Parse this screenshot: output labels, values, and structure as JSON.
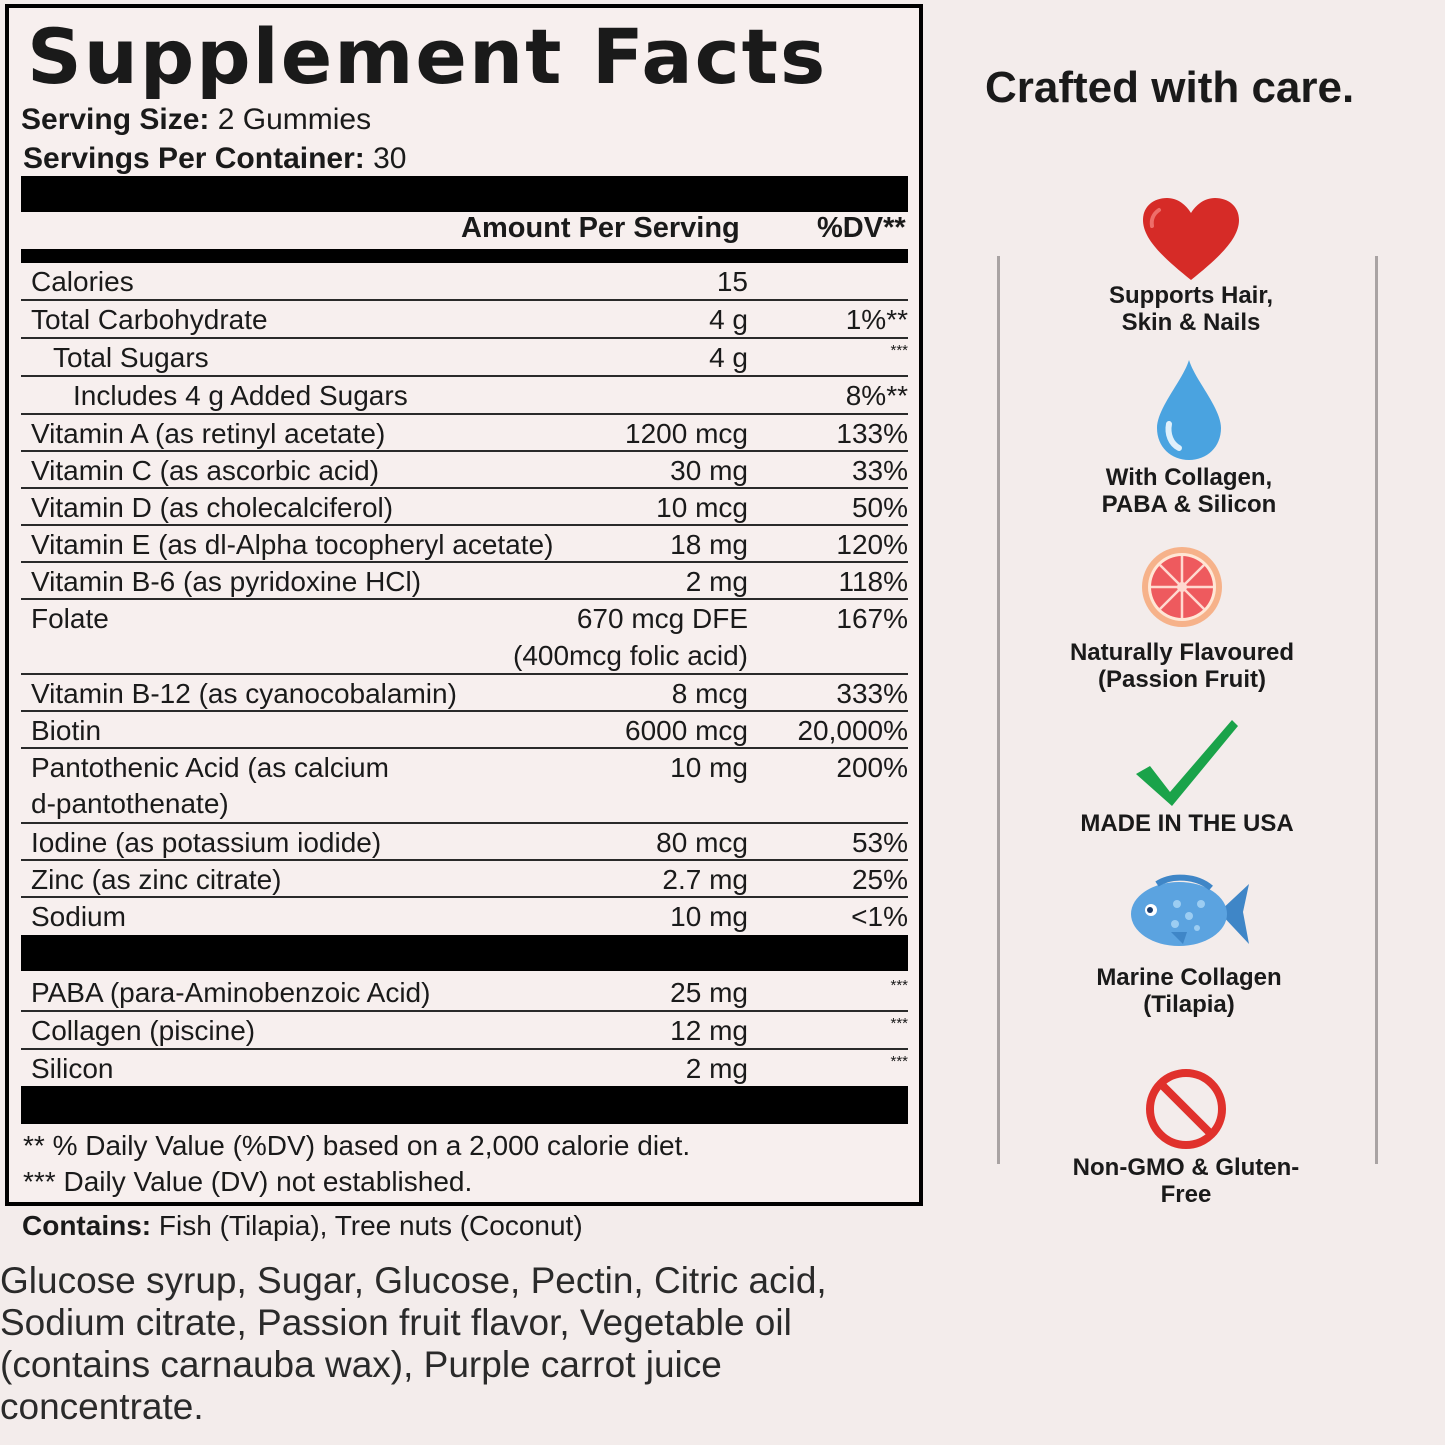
{
  "facts": {
    "title": "Supplement Facts",
    "serving_size_label": "Serving Size:",
    "serving_size_value": "2 Gummies",
    "servings_label": "Servings Per Container:",
    "servings_value": "30",
    "header_amount": "Amount Per Serving",
    "header_dv": "%DV**",
    "rows": [
      {
        "name": "Calories",
        "amount": "15",
        "dv": ""
      },
      {
        "name": "Total Carbohydrate",
        "amount": "4 g",
        "dv": "1%**"
      },
      {
        "name": "Total Sugars",
        "amount": "4 g",
        "dv": "***"
      },
      {
        "name": "Includes 4 g Added Sugars",
        "amount": "",
        "dv": "8%**"
      },
      {
        "name": "Vitamin A (as retinyl acetate)",
        "amount": "1200 mcg",
        "dv": "133%"
      },
      {
        "name": "Vitamin C (as ascorbic acid)",
        "amount": "30 mg",
        "dv": "33%"
      },
      {
        "name": "Vitamin D (as cholecalciferol)",
        "amount": "10 mcg",
        "dv": "50%"
      },
      {
        "name": "Vitamin E (as dl-Alpha tocopheryl acetate)",
        "amount": "18 mg",
        "dv": "120%"
      },
      {
        "name": "Vitamin B-6 (as pyridoxine HCl)",
        "amount": "2 mg",
        "dv": "118%"
      },
      {
        "name": "Folate",
        "amount": "670 mcg DFE",
        "amount2": "(400mcg folic acid)",
        "dv": "167%"
      },
      {
        "name": "Vitamin B-12 (as cyanocobalamin)",
        "amount": "8 mcg",
        "dv": "333%"
      },
      {
        "name": "Biotin",
        "amount": "6000 mcg",
        "dv": "20,000%"
      },
      {
        "name": "Pantothenic Acid (as calcium",
        "name2": "d-pantothenate)",
        "amount": "10 mg",
        "dv": "200%"
      },
      {
        "name": "Iodine (as potassium iodide)",
        "amount": "80 mcg",
        "dv": "53%"
      },
      {
        "name": "Zinc (as zinc citrate)",
        "amount": "2.7 mg",
        "dv": "25%"
      },
      {
        "name": "Sodium",
        "amount": "10 mg",
        "dv": "<1%"
      }
    ],
    "other_rows": [
      {
        "name": "PABA (para-Aminobenzoic Acid)",
        "amount": "25 mg",
        "dv": "***"
      },
      {
        "name": "Collagen (piscine)",
        "amount": "12 mg",
        "dv": "***"
      },
      {
        "name": "Silicon",
        "amount": "2 mg",
        "dv": "***"
      }
    ],
    "footnote1": "** % Daily Value (%DV) based on a 2,000 calorie diet.",
    "footnote2": "*** Daily Value (DV) not established."
  },
  "contains_label": "Contains:",
  "contains_value": "Fish (Tilapia), Tree nuts (Coconut)",
  "ingredients": "Glucose syrup, Sugar, Glucose, Pectin, Citric acid, Sodium citrate, Passion fruit flavor, Vegetable oil (contains carnauba wax), Purple carrot juice concentrate.",
  "side": {
    "heading": "Crafted with care.",
    "features": [
      {
        "icon": "heart-icon",
        "label1": "Supports Hair,",
        "label2": "Skin & Nails",
        "color": "#d62b27"
      },
      {
        "icon": "water-drop-icon",
        "label1": "With Collagen,",
        "label2": "PABA & Silicon",
        "color": "#4aa3e0"
      },
      {
        "icon": "grapefruit-icon",
        "label1": "Naturally Flavoured",
        "label2": "(Passion Fruit)",
        "color": "#ef6a6a"
      },
      {
        "icon": "checkmark-icon",
        "label1": "MADE IN THE USA",
        "label2": "",
        "color": "#1aa34a"
      },
      {
        "icon": "fish-icon",
        "label1": "Marine Collagen",
        "label2": "(Tilapia)",
        "color": "#4a90d0"
      },
      {
        "icon": "prohibited-icon",
        "label1": "Non-GMO & Gluten-",
        "label2": "Free",
        "color": "#e0312c"
      }
    ]
  }
}
